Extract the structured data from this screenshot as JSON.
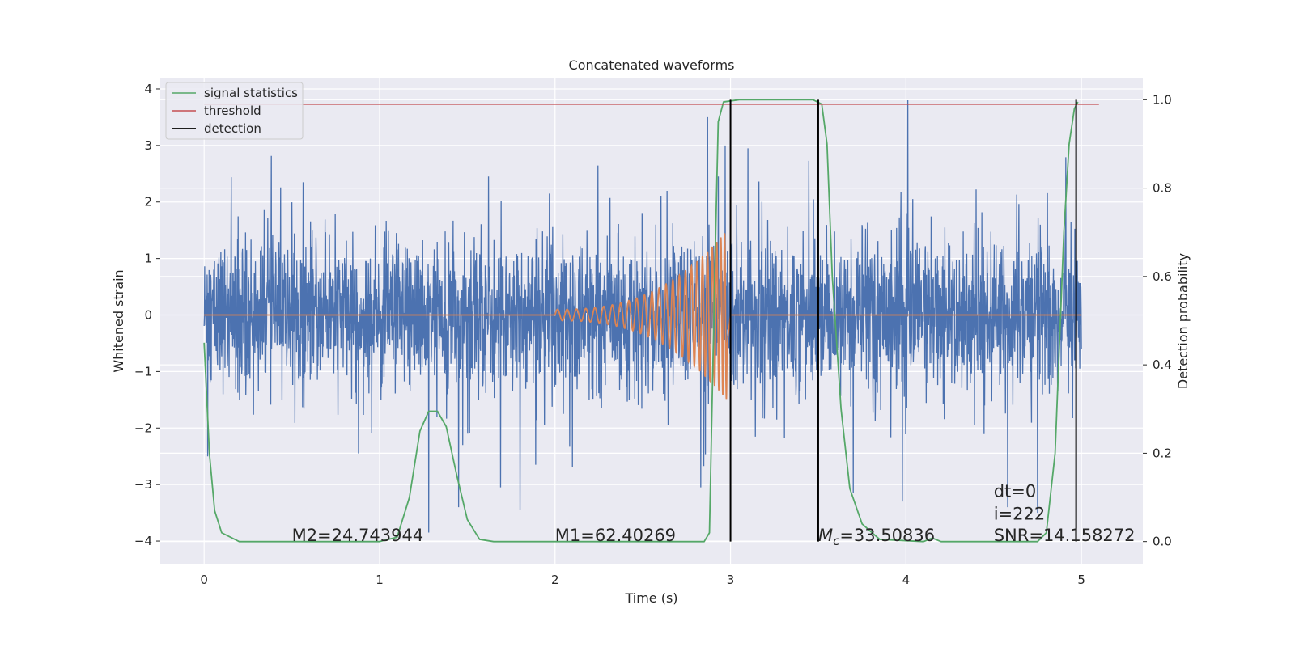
{
  "chart_data": {
    "type": "line",
    "title": "Concatenated waveforms",
    "xlabel": "Time (s)",
    "ylabel": "Whitened strain",
    "ylabel_right": "Detection probability",
    "xlim": [
      -0.25,
      5.35
    ],
    "ylim": [
      -4.4,
      4.2
    ],
    "ylim_right": [
      -0.05,
      1.05
    ],
    "x_ticks": [
      0,
      1,
      2,
      3,
      4,
      5
    ],
    "y_ticks": [
      -4,
      -3,
      -2,
      -1,
      0,
      1,
      2,
      3,
      4
    ],
    "y_ticks_right": [
      0.0,
      0.2,
      0.4,
      0.6,
      0.8,
      1.0
    ],
    "y_ticks_right_labels": [
      "0.0",
      "0.2",
      "0.4",
      "0.6",
      "0.8",
      "1.0"
    ],
    "grid": true,
    "legend_position": "top-left",
    "colors": {
      "noise": "#4c72b0",
      "waveform": "#dd8452",
      "signal_statistics": "#55a868",
      "threshold": "#c44e52",
      "detection": "#000000",
      "background": "#eaeaf2",
      "grid": "#ffffff"
    },
    "legend": [
      {
        "label": "signal statistics",
        "color": "#55a868"
      },
      {
        "label": "threshold",
        "color": "#c44e52"
      },
      {
        "label": "detection",
        "color": "#000000"
      }
    ],
    "noise": {
      "x_range": [
        0,
        5
      ],
      "typical_abs": 0.7,
      "extremes": [
        {
          "x": 0.02,
          "y": -2.5
        },
        {
          "x": 1.28,
          "y": -3.85
        },
        {
          "x": 1.45,
          "y": -3.4
        },
        {
          "x": 1.69,
          "y": -3.05
        },
        {
          "x": 1.8,
          "y": -3.45
        },
        {
          "x": 2.87,
          "y": 3.5
        },
        {
          "x": 2.93,
          "y": 2.45
        },
        {
          "x": 2.97,
          "y": 3.0
        },
        {
          "x": 2.83,
          "y": -3.05
        },
        {
          "x": 3.1,
          "y": 2.95
        },
        {
          "x": 3.7,
          "y": -3.15
        },
        {
          "x": 3.98,
          "y": -3.3
        },
        {
          "x": 4.01,
          "y": 3.8
        },
        {
          "x": 4.58,
          "y": -3.4
        },
        {
          "x": 4.75,
          "y": -3.5
        }
      ]
    },
    "waveform": {
      "x_start": 2.0,
      "x_end": 2.98,
      "amplitude_start": 0.1,
      "amplitude_end": 1.5,
      "baseline": 0
    },
    "signal_statistics": [
      [
        0.0,
        0.45
      ],
      [
        0.03,
        0.2
      ],
      [
        0.06,
        0.07
      ],
      [
        0.1,
        0.02
      ],
      [
        0.2,
        0.0
      ],
      [
        1.0,
        0.0
      ],
      [
        1.1,
        0.01
      ],
      [
        1.17,
        0.1
      ],
      [
        1.23,
        0.25
      ],
      [
        1.28,
        0.295
      ],
      [
        1.33,
        0.295
      ],
      [
        1.38,
        0.26
      ],
      [
        1.44,
        0.15
      ],
      [
        1.5,
        0.05
      ],
      [
        1.57,
        0.005
      ],
      [
        1.65,
        0.0
      ],
      [
        2.85,
        0.0
      ],
      [
        2.88,
        0.02
      ],
      [
        2.91,
        0.6
      ],
      [
        2.93,
        0.95
      ],
      [
        2.96,
        0.995
      ],
      [
        3.05,
        1.0
      ],
      [
        3.47,
        1.0
      ],
      [
        3.52,
        0.99
      ],
      [
        3.55,
        0.9
      ],
      [
        3.58,
        0.6
      ],
      [
        3.63,
        0.3
      ],
      [
        3.68,
        0.12
      ],
      [
        3.75,
        0.04
      ],
      [
        3.85,
        0.005
      ],
      [
        4.1,
        0.0
      ],
      [
        4.15,
        0.008
      ],
      [
        4.2,
        0.0
      ],
      [
        4.75,
        0.0
      ],
      [
        4.8,
        0.02
      ],
      [
        4.85,
        0.2
      ],
      [
        4.9,
        0.7
      ],
      [
        4.93,
        0.9
      ],
      [
        4.96,
        0.98
      ],
      [
        4.98,
        0.995
      ]
    ],
    "threshold": {
      "value": 0.99,
      "x_range": [
        0,
        5.1
      ]
    },
    "detections": [
      3.0,
      3.5,
      4.97
    ],
    "annotations": [
      {
        "text": "M2=24.743944",
        "x": 0.5,
        "y": -4.0
      },
      {
        "text": "M1=62.40269",
        "x": 2.0,
        "y": -4.0
      },
      {
        "text_prefix": "M",
        "text_sub": "c",
        "text_rest": "=33.50836",
        "x": 3.5,
        "y": -4.0
      },
      {
        "text": "SNR=14.158272",
        "x": 4.5,
        "y": -4.0
      },
      {
        "text": "i=222",
        "x": 4.5,
        "y": -3.62
      },
      {
        "text": "dt=0",
        "x": 4.5,
        "y": -3.22
      }
    ]
  }
}
